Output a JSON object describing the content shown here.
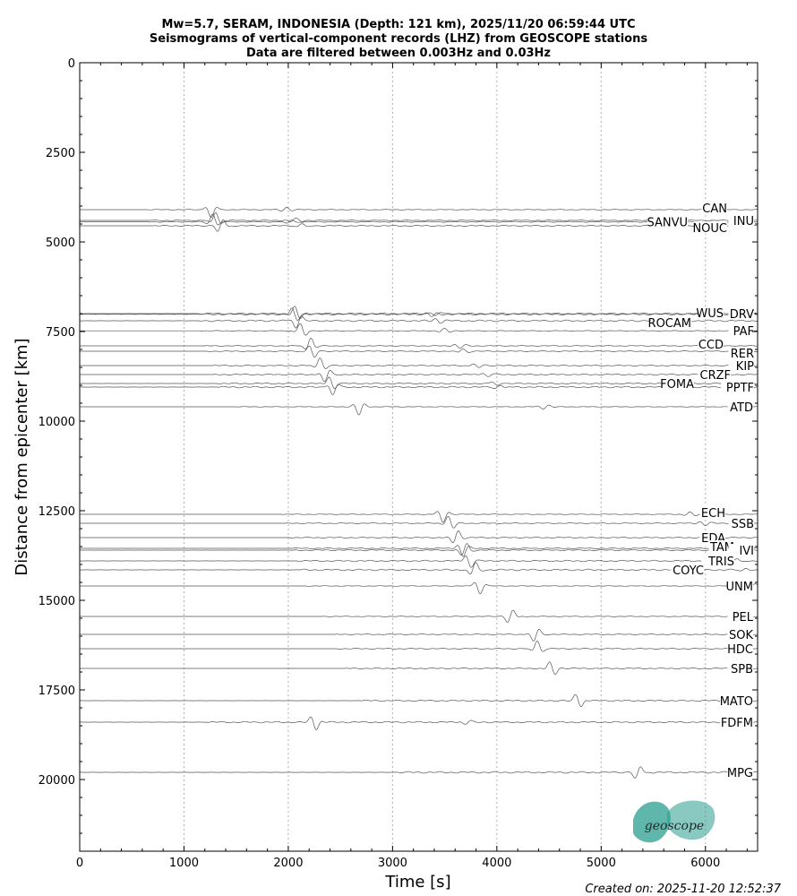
{
  "chart_data": {
    "type": "line",
    "title_lines": [
      "Mw=5.7, SERAM, INDONESIA (Depth: 121 km), 2025/11/20 06:59:44 UTC",
      "Seismograms of vertical-component records (LHZ) from GEOSCOPE stations",
      "Data are filtered between 0.003Hz and 0.03Hz"
    ],
    "xlabel": "Time [s]",
    "ylabel": "Distance from epicenter [km]",
    "xlim": [
      0,
      6500
    ],
    "ylim": [
      22000,
      0
    ],
    "x_ticks": [
      0,
      1000,
      2000,
      3000,
      4000,
      5000,
      6000
    ],
    "y_ticks": [
      0,
      2500,
      5000,
      7500,
      10000,
      12500,
      15000,
      17500,
      20000
    ],
    "grid_x": true,
    "stations": [
      {
        "name": "CAN",
        "distance": 4100,
        "arrival": 1130
      },
      {
        "name": "INU",
        "distance": 4400,
        "arrival": 1180
      },
      {
        "name": "SANVU",
        "distance": 4440,
        "arrival": 1150
      },
      {
        "name": "NOUC",
        "distance": 4550,
        "arrival": 1220
      },
      {
        "name": "DRV",
        "distance": 7000,
        "arrival": 1950
      },
      {
        "name": "WUS",
        "distance": 7020,
        "arrival": 1930
      },
      {
        "name": "ROCAM",
        "distance": 7200,
        "arrival": 1960
      },
      {
        "name": "PAF",
        "distance": 7480,
        "arrival": 2000
      },
      {
        "name": "CCD",
        "distance": 7900,
        "arrival": 2080
      },
      {
        "name": "RER",
        "distance": 8050,
        "arrival": 2100
      },
      {
        "name": "KIP",
        "distance": 8450,
        "arrival": 2180
      },
      {
        "name": "CRZF",
        "distance": 8700,
        "arrival": 2230
      },
      {
        "name": "FOMA",
        "distance": 8950,
        "arrival": 2280
      },
      {
        "name": "PPTF",
        "distance": 9050,
        "arrival": 2300
      },
      {
        "name": "ATD",
        "distance": 9600,
        "arrival": 2550
      },
      {
        "name": "ECH",
        "distance": 12600,
        "arrival": 3350
      },
      {
        "name": "SSB",
        "distance": 12850,
        "arrival": 3420
      },
      {
        "name": "EDA",
        "distance": 13250,
        "arrival": 3480
      },
      {
        "name": "TAM",
        "distance": 13550,
        "arrival": 3540
      },
      {
        "name": "IVI",
        "distance": 13600,
        "arrival": 3560
      },
      {
        "name": "TRIS",
        "distance": 13900,
        "arrival": 3600
      },
      {
        "name": "COYC",
        "distance": 14150,
        "arrival": 3650
      },
      {
        "name": "UNM",
        "distance": 14600,
        "arrival": 3700
      },
      {
        "name": "PEL",
        "distance": 15450,
        "arrival": 4000
      },
      {
        "name": "SOK",
        "distance": 15950,
        "arrival": 4240
      },
      {
        "name": "HDC",
        "distance": 16350,
        "arrival": 4260
      },
      {
        "name": "SPB",
        "distance": 16900,
        "arrival": 4400
      },
      {
        "name": "MATO",
        "distance": 17800,
        "arrival": 4650
      },
      {
        "name": "FDFM",
        "distance": 18400,
        "arrival": 2120
      },
      {
        "name": "MPG",
        "distance": 19800,
        "arrival": 5220
      }
    ],
    "colors": {
      "trace": "#555555",
      "grid": "#b0b0b0",
      "logo": "#2a9d8f"
    }
  },
  "footer": {
    "created": "Created on: 2025-11-20 12:52:37"
  },
  "logo": {
    "text": "geoscope"
  }
}
